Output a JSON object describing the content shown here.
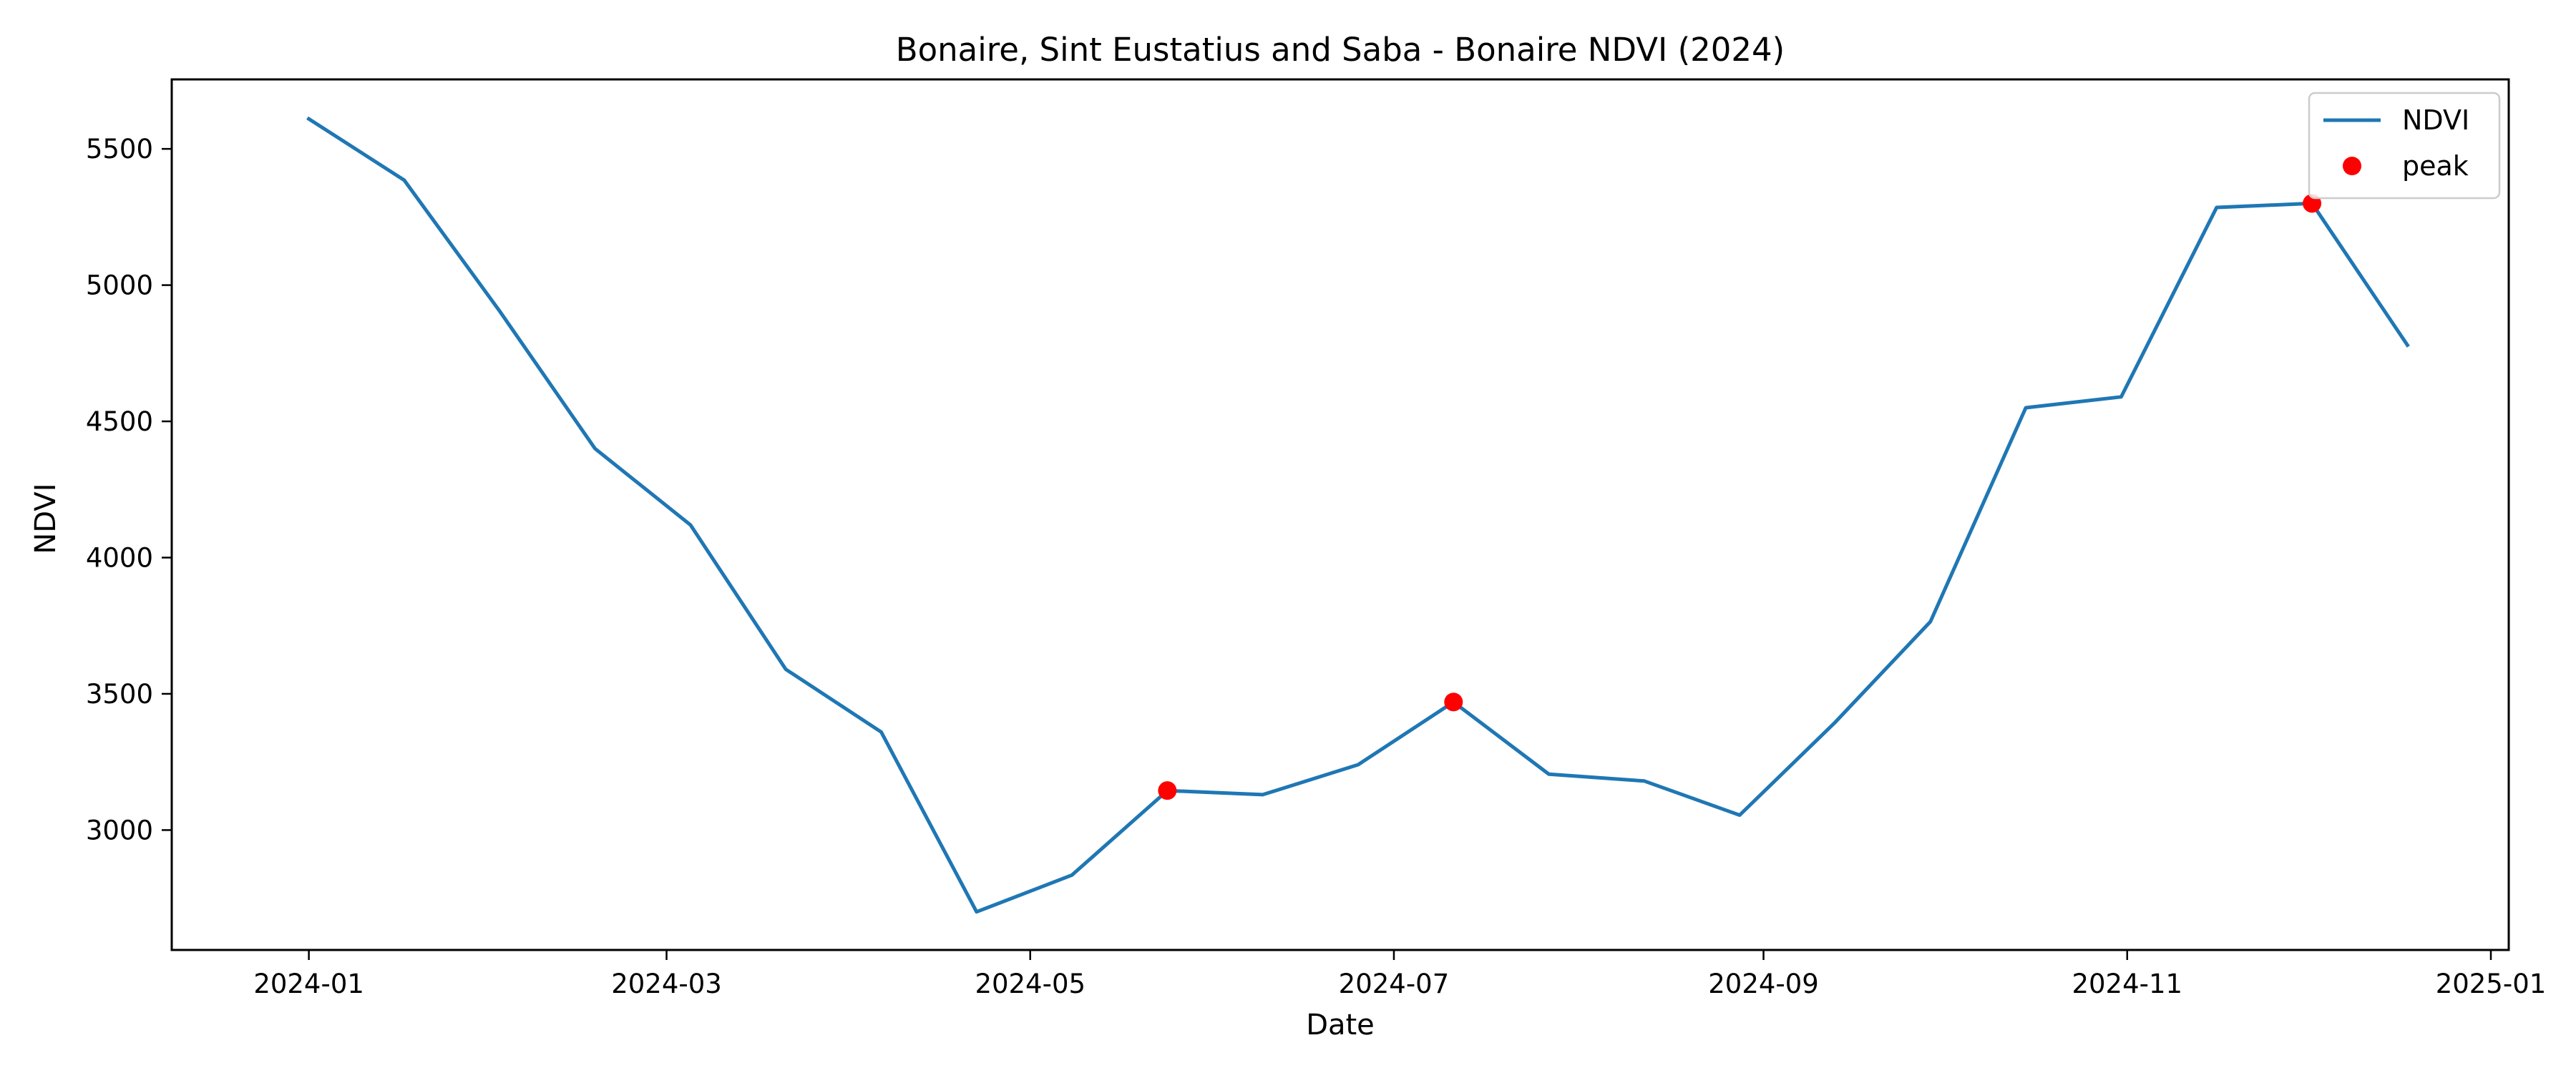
{
  "chart_data": {
    "type": "line",
    "title": "Bonaire, Sint Eustatius and Saba - Bonaire NDVI (2024)",
    "xlabel": "Date",
    "ylabel": "NDVI",
    "x_axis_type": "date",
    "xlim": [
      "2023-12-09",
      "2025-01-04"
    ],
    "ylim": [
      2560,
      5755
    ],
    "x_ticks": [
      "2024-01-01",
      "2024-03-01",
      "2024-05-01",
      "2024-07-01",
      "2024-09-01",
      "2024-11-01",
      "2025-01-01"
    ],
    "x_tick_labels": [
      "2024-01",
      "2024-03",
      "2024-05",
      "2024-07",
      "2024-09",
      "2024-11",
      "2025-01"
    ],
    "y_ticks": [
      3000,
      3500,
      4000,
      4500,
      5000,
      5500
    ],
    "y_tick_labels": [
      "3000",
      "3500",
      "4000",
      "4500",
      "5000",
      "5500"
    ],
    "grid": false,
    "legend": {
      "position": "top-right",
      "entries": [
        {
          "label": "NDVI",
          "marker": "line",
          "color": "#1f77b4"
        },
        {
          "label": "peak",
          "marker": "dot",
          "color": "#ff0000"
        }
      ]
    },
    "series": [
      {
        "name": "NDVI",
        "color": "#1f77b4",
        "style": "line",
        "x": [
          "2024-01-01",
          "2024-01-17",
          "2024-02-02",
          "2024-02-18",
          "2024-03-05",
          "2024-03-21",
          "2024-04-06",
          "2024-04-22",
          "2024-05-08",
          "2024-05-24",
          "2024-06-09",
          "2024-06-25",
          "2024-07-11",
          "2024-07-27",
          "2024-08-12",
          "2024-08-28",
          "2024-09-13",
          "2024-09-29",
          "2024-10-15",
          "2024-10-31",
          "2024-11-16",
          "2024-12-02",
          "2024-12-18"
        ],
        "y": [
          5610,
          5385,
          4905,
          4400,
          4120,
          3590,
          3360,
          2700,
          2835,
          3145,
          3130,
          3240,
          3470,
          3205,
          3180,
          3055,
          3395,
          3765,
          4550,
          4590,
          5285,
          5300,
          4780
        ]
      },
      {
        "name": "peak",
        "color": "#ff0000",
        "style": "scatter",
        "x": [
          "2024-05-24",
          "2024-07-11",
          "2024-12-02"
        ],
        "y": [
          3145,
          3470,
          5300
        ]
      }
    ]
  }
}
